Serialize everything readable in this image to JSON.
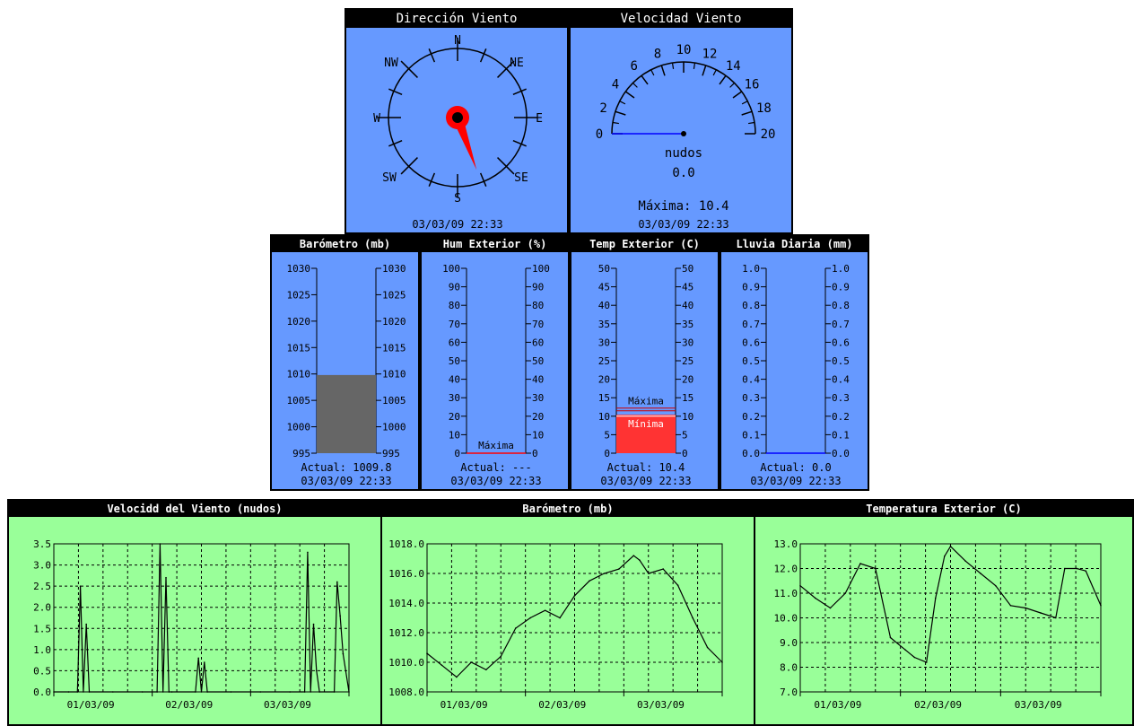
{
  "colors": {
    "panel_blue": "#6699ff",
    "panel_green": "#99ff99",
    "needle": "#ff0000",
    "baro_bar": "#666666",
    "temp_bar": "#ff3333",
    "zero_line": "#0000ff"
  },
  "compass": {
    "title": "Dirección Viento",
    "labels": {
      "n": "N",
      "ne": "NE",
      "e": "E",
      "se": "SE",
      "s": "S",
      "sw": "SW",
      "w": "W",
      "nw": "NW"
    },
    "timestamp": "03/03/09  22:33",
    "direction_deg": 160
  },
  "speed": {
    "title": "Velocidad Viento",
    "ticks": [
      "0",
      "2",
      "4",
      "6",
      "8",
      "10",
      "12",
      "14",
      "16",
      "18",
      "20"
    ],
    "unit": "nudos",
    "current": "0.0",
    "max_text": "Máxima: 10.4",
    "timestamp": "03/03/09  22:33",
    "value": 0.0
  },
  "gauges": [
    {
      "title": "Barómetro (mb)",
      "ticks": [
        "1030",
        "1025",
        "1020",
        "1015",
        "1010",
        "1005",
        "1000",
        "995"
      ],
      "actual": "Actual: 1009.8",
      "timestamp": "03/03/09 22:33",
      "min": 995,
      "max": 1030,
      "level": 1009.8
    },
    {
      "title": "Hum Exterior (%)",
      "ticks": [
        "100",
        "90",
        "80",
        "70",
        "60",
        "50",
        "40",
        "30",
        "20",
        "10",
        "0"
      ],
      "actual": "Actual: ---",
      "timestamp": "03/03/09 22:33",
      "min": 0,
      "max": 100,
      "marker": "Máxima",
      "level": 0
    },
    {
      "title": "Temp Exterior (C)",
      "ticks": [
        "50",
        "45",
        "40",
        "35",
        "30",
        "25",
        "20",
        "15",
        "10",
        "5",
        "0"
      ],
      "actual": "Actual: 10.4",
      "timestamp": "03/03/09 22:33",
      "min": 0,
      "max": 50,
      "max_label": "Máxima",
      "min_label": "Mínima",
      "level": 10.4,
      "max_value": 12.2,
      "min_value": 10.0
    },
    {
      "title": "Lluvia Diaria (mm)",
      "ticks": [
        "1.0",
        "0.9",
        "0.8",
        "0.7",
        "0.6",
        "0.5",
        "0.4",
        "0.3",
        "0.2",
        "0.1",
        "0.0"
      ],
      "actual": "Actual: 0.0",
      "timestamp": "03/03/09 22:33",
      "min": 0,
      "max": 1,
      "level": 0.0
    }
  ],
  "charts": [
    {
      "title": "Velocidd del Viento (nudos)",
      "chart_data": {
        "type": "line",
        "yticks": [
          "0.0",
          "0.5",
          "1.0",
          "1.5",
          "2.0",
          "2.5",
          "3.0",
          "3.5"
        ],
        "ylim": [
          0,
          3.5
        ],
        "xlabels": [
          "01/03/09",
          "02/03/09",
          "03/03/09"
        ],
        "x": [
          0,
          0.05,
          0.08,
          0.09,
          0.1,
          0.11,
          0.12,
          0.2,
          0.3,
          0.35,
          0.36,
          0.37,
          0.38,
          0.39,
          0.4,
          0.48,
          0.49,
          0.5,
          0.51,
          0.52,
          0.6,
          0.7,
          0.8,
          0.85,
          0.86,
          0.87,
          0.88,
          0.89,
          0.9,
          0.95,
          0.96,
          0.97,
          0.98,
          1.0
        ],
        "y": [
          0,
          0,
          0,
          2.5,
          0,
          1.6,
          0,
          0,
          0,
          0,
          3.5,
          0,
          2.7,
          0,
          0,
          0,
          0.8,
          0,
          0.7,
          0,
          0,
          0,
          0,
          0,
          3.3,
          0,
          1.6,
          0.5,
          0,
          0,
          2.6,
          1.8,
          0.9,
          0
        ]
      }
    },
    {
      "title": "Barómetro (mb)",
      "chart_data": {
        "type": "line",
        "yticks": [
          "1008.0",
          "1010.0",
          "1012.0",
          "1014.0",
          "1016.0",
          "1018.0"
        ],
        "ylim": [
          1008,
          1018
        ],
        "xlabels": [
          "01/03/09",
          "02/03/09",
          "03/03/09"
        ],
        "x": [
          0,
          0.05,
          0.1,
          0.15,
          0.2,
          0.25,
          0.3,
          0.35,
          0.4,
          0.45,
          0.5,
          0.55,
          0.6,
          0.65,
          0.7,
          0.72,
          0.75,
          0.8,
          0.85,
          0.9,
          0.95,
          1.0
        ],
        "y": [
          1010.6,
          1009.8,
          1009.0,
          1010.0,
          1009.5,
          1010.4,
          1012.3,
          1013.0,
          1013.5,
          1013.0,
          1014.5,
          1015.5,
          1016.0,
          1016.3,
          1017.2,
          1016.9,
          1016.0,
          1016.3,
          1015.2,
          1013.0,
          1011.0,
          1010.0
        ]
      }
    },
    {
      "title": "Temperatura Exterior (C)",
      "chart_data": {
        "type": "line",
        "yticks": [
          "7.0",
          "8.0",
          "9.0",
          "10.0",
          "11.0",
          "12.0",
          "13.0"
        ],
        "ylim": [
          7,
          13
        ],
        "xlabels": [
          "01/03/09",
          "02/03/09",
          "03/03/09"
        ],
        "x": [
          0,
          0.05,
          0.1,
          0.15,
          0.2,
          0.25,
          0.3,
          0.35,
          0.38,
          0.42,
          0.45,
          0.48,
          0.5,
          0.55,
          0.6,
          0.65,
          0.7,
          0.75,
          0.8,
          0.85,
          0.88,
          0.92,
          0.95,
          1.0
        ],
        "y": [
          11.3,
          10.8,
          10.4,
          11.0,
          12.2,
          12.0,
          9.2,
          8.7,
          8.4,
          8.2,
          10.8,
          12.5,
          12.9,
          12.3,
          11.8,
          11.3,
          10.5,
          10.4,
          10.2,
          10.0,
          12.0,
          12.0,
          11.9,
          10.5
        ]
      }
    }
  ]
}
